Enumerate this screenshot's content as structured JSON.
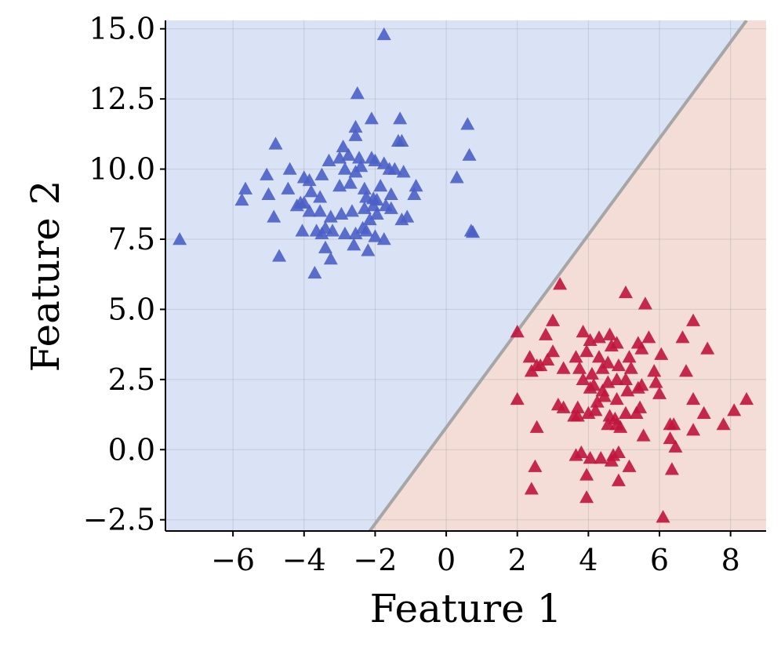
{
  "chart_data": {
    "type": "scatter",
    "title": "",
    "xlabel": "Feature 1",
    "ylabel": "Feature 2",
    "xlim": [
      -7.9,
      9.0
    ],
    "ylim": [
      -2.9,
      15.3
    ],
    "xticks": [
      -6,
      -4,
      -2,
      0,
      2,
      4,
      6,
      8
    ],
    "yticks": [
      -2.5,
      0.0,
      2.5,
      5.0,
      7.5,
      10.0,
      12.5,
      15.0
    ],
    "xtick_labels": [
      "−6",
      "−4",
      "−2",
      "0",
      "2",
      "4",
      "6",
      "8"
    ],
    "ytick_labels": [
      "−2.5",
      "0.0",
      "2.5",
      "5.0",
      "7.5",
      "10.0",
      "12.5",
      "15.0"
    ],
    "grid": true,
    "marker": "triangle",
    "colors": {
      "class_0": "#4a5fc8",
      "class_1": "#c0143c",
      "region_0": "#dae3f5",
      "region_1": "#f3ddd6",
      "boundary": "#a6a6a6"
    },
    "decision_boundary": {
      "points": [
        [
          -2.15,
          -2.9
        ],
        [
          8.45,
          15.3
        ]
      ]
    },
    "series": [
      {
        "class": 0,
        "points": [
          [
            -1.75,
            14.8
          ],
          [
            -2.5,
            12.7
          ],
          [
            -2.55,
            11.5
          ],
          [
            -2.1,
            11.8
          ],
          [
            -1.3,
            11.8
          ],
          [
            -4.8,
            10.9
          ],
          [
            -2.9,
            10.8
          ],
          [
            -1.35,
            11.0
          ],
          [
            -1.25,
            11.0
          ],
          [
            0.6,
            11.6
          ],
          [
            0.65,
            10.5
          ],
          [
            -2.55,
            11.2
          ],
          [
            -5.05,
            9.8
          ],
          [
            -4.4,
            10.0
          ],
          [
            -4.0,
            9.7
          ],
          [
            -3.85,
            9.6
          ],
          [
            -3.5,
            9.8
          ],
          [
            -3.3,
            10.3
          ],
          [
            -3.0,
            10.4
          ],
          [
            -2.75,
            10.5
          ],
          [
            -2.45,
            10.4
          ],
          [
            -2.1,
            10.4
          ],
          [
            -1.75,
            10.2
          ],
          [
            -1.45,
            10.0
          ],
          [
            -1.2,
            9.9
          ],
          [
            -2.85,
            10.0
          ],
          [
            -2.55,
            9.9
          ],
          [
            -2.4,
            10.1
          ],
          [
            -2.0,
            10.3
          ],
          [
            -1.6,
            10.0
          ],
          [
            0.3,
            9.7
          ],
          [
            -5.65,
            9.3
          ],
          [
            -5.75,
            8.9
          ],
          [
            -5.0,
            9.1
          ],
          [
            -4.45,
            9.3
          ],
          [
            -4.1,
            8.8
          ],
          [
            -3.8,
            9.2
          ],
          [
            -3.55,
            9.0
          ],
          [
            -3.0,
            9.4
          ],
          [
            -2.7,
            9.5
          ],
          [
            -2.3,
            9.3
          ],
          [
            -1.85,
            9.4
          ],
          [
            -1.55,
            9.1
          ],
          [
            -2.05,
            8.95
          ],
          [
            -4.0,
            8.8
          ],
          [
            -3.85,
            8.5
          ],
          [
            -3.55,
            8.5
          ],
          [
            -3.25,
            8.3
          ],
          [
            -2.95,
            8.4
          ],
          [
            -2.65,
            8.5
          ],
          [
            -2.3,
            8.6
          ],
          [
            -1.95,
            8.9
          ],
          [
            -1.7,
            8.7
          ],
          [
            -1.55,
            8.6
          ],
          [
            -0.85,
            9.4
          ],
          [
            -0.9,
            9.1
          ],
          [
            -1.1,
            8.3
          ],
          [
            -1.25,
            8.2
          ],
          [
            -4.85,
            8.3
          ],
          [
            -4.2,
            8.7
          ],
          [
            -3.65,
            7.8
          ],
          [
            -3.4,
            7.9
          ],
          [
            -3.2,
            7.8
          ],
          [
            -2.85,
            7.7
          ],
          [
            -2.55,
            7.7
          ],
          [
            -2.25,
            7.8
          ],
          [
            -2.0,
            7.6
          ],
          [
            -1.75,
            7.5
          ],
          [
            -2.15,
            8.2
          ],
          [
            -2.35,
            7.9
          ],
          [
            0.7,
            7.8
          ],
          [
            0.75,
            7.75
          ],
          [
            -7.5,
            7.5
          ],
          [
            -3.4,
            7.2
          ],
          [
            -2.6,
            7.3
          ],
          [
            -2.2,
            7.1
          ],
          [
            -3.25,
            6.8
          ],
          [
            -4.7,
            6.9
          ],
          [
            -3.7,
            6.3
          ],
          [
            -4.05,
            7.8
          ],
          [
            -3.5,
            7.7
          ],
          [
            -2.05,
            8.7
          ],
          [
            -2.25,
            9.0
          ],
          [
            -1.95,
            8.4
          ]
        ]
      },
      {
        "class": 1,
        "points": [
          [
            3.2,
            5.9
          ],
          [
            5.05,
            5.6
          ],
          [
            5.6,
            5.2
          ],
          [
            2.0,
            4.2
          ],
          [
            6.95,
            4.6
          ],
          [
            3.0,
            4.6
          ],
          [
            4.3,
            4.0
          ],
          [
            4.6,
            4.1
          ],
          [
            4.8,
            3.8
          ],
          [
            5.7,
            4.0
          ],
          [
            2.8,
            4.1
          ],
          [
            3.85,
            4.2
          ],
          [
            4.05,
            3.9
          ],
          [
            4.65,
            3.7
          ],
          [
            5.4,
            3.8
          ],
          [
            6.65,
            4.0
          ],
          [
            7.35,
            3.6
          ],
          [
            2.35,
            3.3
          ],
          [
            2.65,
            3.0
          ],
          [
            2.85,
            3.2
          ],
          [
            3.0,
            3.5
          ],
          [
            3.65,
            3.3
          ],
          [
            3.95,
            3.5
          ],
          [
            4.3,
            3.3
          ],
          [
            4.55,
            3.1
          ],
          [
            4.85,
            3.0
          ],
          [
            5.15,
            3.3
          ],
          [
            5.5,
            3.6
          ],
          [
            6.05,
            3.4
          ],
          [
            6.75,
            2.8
          ],
          [
            2.4,
            2.8
          ],
          [
            2.55,
            3.0
          ],
          [
            3.3,
            2.9
          ],
          [
            3.75,
            2.9
          ],
          [
            4.1,
            2.7
          ],
          [
            4.4,
            2.9
          ],
          [
            4.8,
            2.5
          ],
          [
            5.2,
            2.9
          ],
          [
            5.85,
            2.8
          ],
          [
            3.85,
            2.5
          ],
          [
            4.15,
            2.3
          ],
          [
            4.55,
            2.4
          ],
          [
            5.05,
            2.5
          ],
          [
            5.5,
            2.3
          ],
          [
            5.9,
            2.4
          ],
          [
            4.05,
            2.2
          ],
          [
            4.4,
            2.1
          ],
          [
            5.1,
            2.1
          ],
          [
            5.4,
            2.2
          ],
          [
            6.0,
            2.0
          ],
          [
            2.0,
            1.8
          ],
          [
            3.15,
            1.6
          ],
          [
            3.3,
            1.5
          ],
          [
            3.7,
            1.5
          ],
          [
            4.25,
            1.7
          ],
          [
            4.45,
            1.9
          ],
          [
            4.8,
            1.8
          ],
          [
            5.45,
            1.5
          ],
          [
            6.95,
            1.8
          ],
          [
            7.25,
            1.3
          ],
          [
            8.1,
            1.4
          ],
          [
            8.45,
            1.8
          ],
          [
            3.7,
            1.2
          ],
          [
            4.0,
            1.3
          ],
          [
            4.2,
            1.4
          ],
          [
            4.6,
            1.2
          ],
          [
            4.75,
            1.1
          ],
          [
            5.05,
            1.3
          ],
          [
            5.35,
            1.3
          ],
          [
            6.4,
            0.9
          ],
          [
            6.95,
            0.7
          ],
          [
            7.8,
            0.9
          ],
          [
            2.55,
            0.8
          ],
          [
            3.6,
            1.2
          ],
          [
            4.55,
            0.9
          ],
          [
            4.8,
            0.9
          ],
          [
            4.9,
            0.8
          ],
          [
            5.55,
            0.5
          ],
          [
            6.3,
            0.4
          ],
          [
            6.45,
            0.1
          ],
          [
            6.3,
            0.9
          ],
          [
            3.65,
            -0.2
          ],
          [
            3.8,
            -0.1
          ],
          [
            4.35,
            -0.3
          ],
          [
            4.7,
            -0.2
          ],
          [
            4.85,
            -0.1
          ],
          [
            5.15,
            -0.6
          ],
          [
            4.65,
            -0.4
          ],
          [
            3.95,
            -0.9
          ],
          [
            4.85,
            -1.1
          ],
          [
            6.35,
            -0.7
          ],
          [
            2.5,
            -0.6
          ],
          [
            2.4,
            -1.4
          ],
          [
            3.95,
            -1.7
          ],
          [
            6.1,
            -2.4
          ],
          [
            4.05,
            -0.3
          ]
        ]
      }
    ]
  }
}
